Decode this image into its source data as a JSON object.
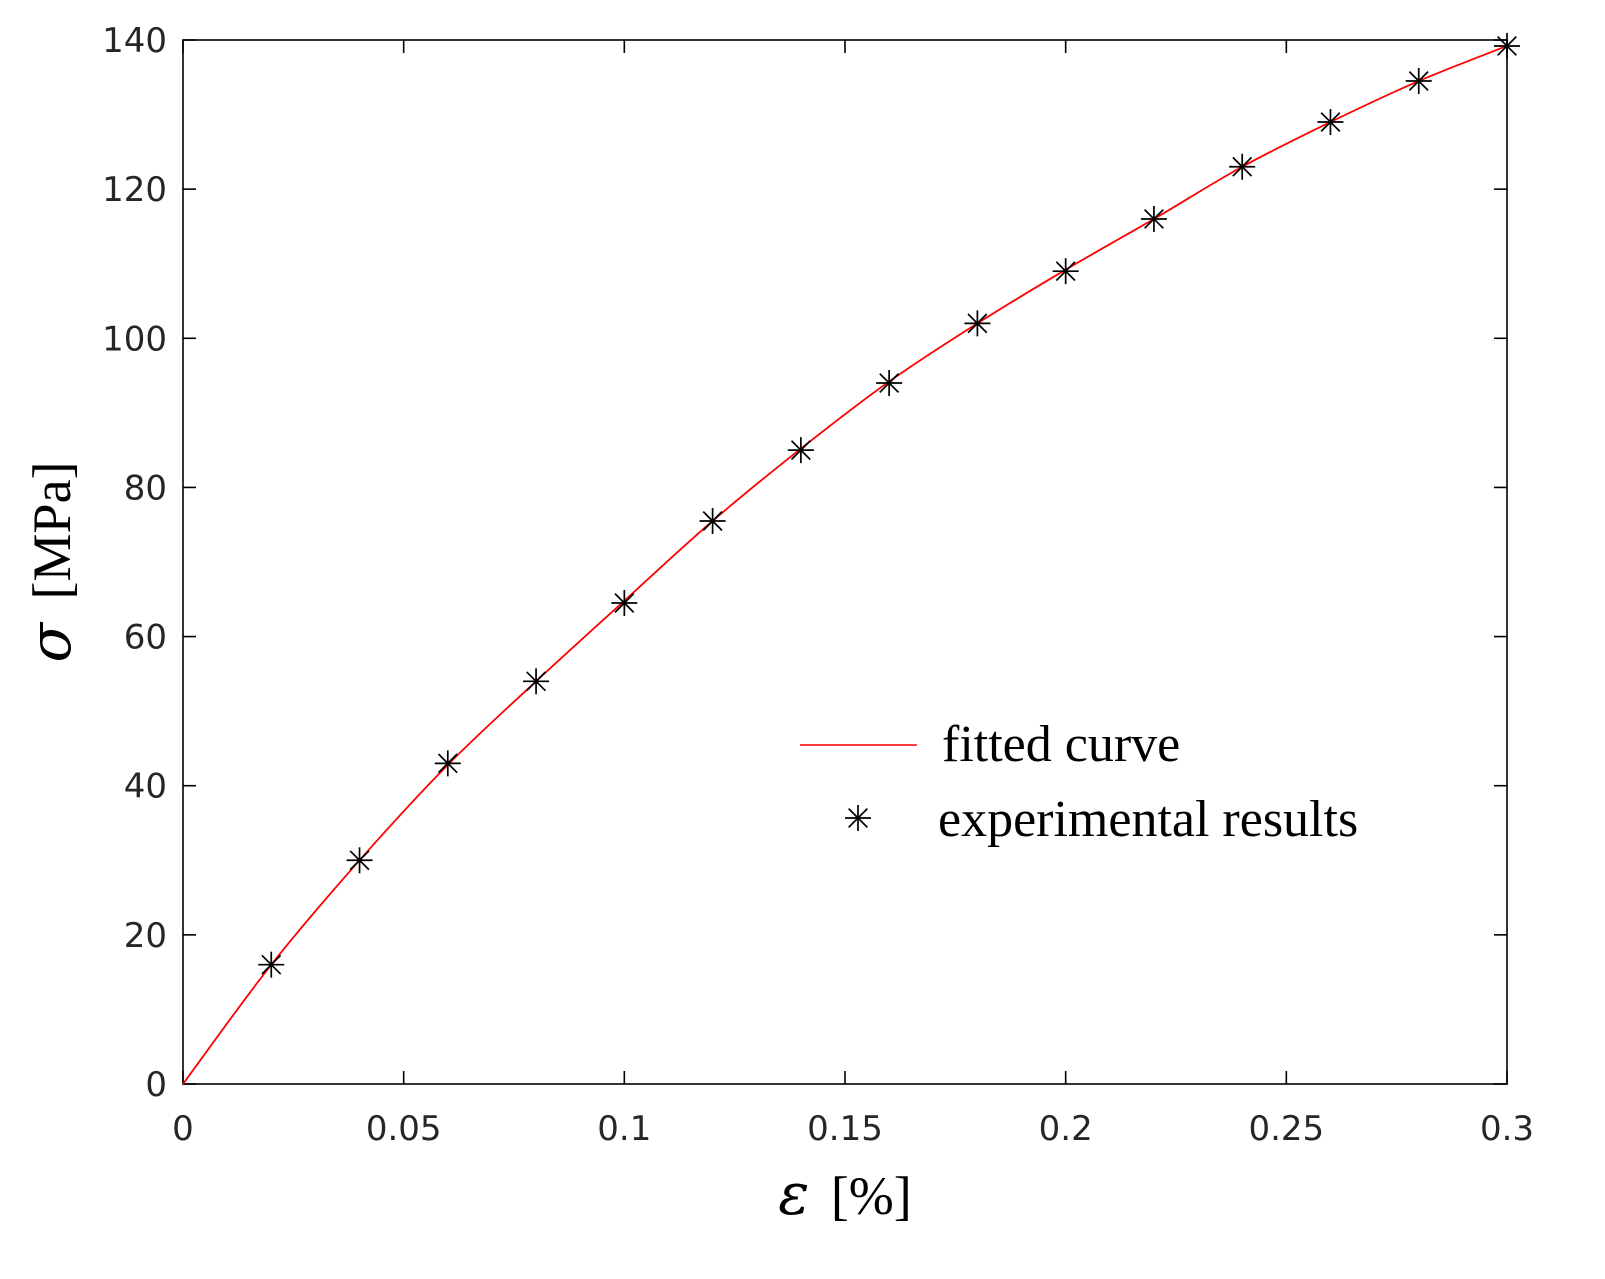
{
  "chart_data": {
    "type": "line",
    "title": "",
    "xlabel": {
      "symbol": "ε",
      "unit": "[%]"
    },
    "ylabel": {
      "symbol": "σ",
      "unit": "[MPa]"
    },
    "xlim": [
      0,
      0.3
    ],
    "ylim": [
      0,
      140
    ],
    "xticks": [
      0,
      0.05,
      0.1,
      0.15,
      0.2,
      0.25,
      0.3
    ],
    "xtick_labels": [
      "0",
      "0.05",
      "0.1",
      "0.15",
      "0.2",
      "0.25",
      "0.3"
    ],
    "yticks": [
      0,
      20,
      40,
      60,
      80,
      100,
      120,
      140
    ],
    "ytick_labels": [
      "0",
      "20",
      "40",
      "60",
      "80",
      "100",
      "120",
      "140"
    ],
    "grid": false,
    "legend_position": "center-right",
    "series": [
      {
        "name": "fitted curve",
        "style": "line",
        "color": "#ff0000",
        "x": [
          0,
          0.02,
          0.04,
          0.06,
          0.08,
          0.1,
          0.12,
          0.14,
          0.16,
          0.18,
          0.2,
          0.22,
          0.24,
          0.26,
          0.28,
          0.3
        ],
        "y": [
          0,
          16,
          30,
          42.8,
          54,
          64.8,
          75.5,
          85.2,
          94.2,
          102,
          109.2,
          116,
          123,
          129,
          134.5,
          139.2
        ]
      },
      {
        "name": "experimental results",
        "style": "marker-asterisk",
        "color": "#000000",
        "x": [
          0.02,
          0.04,
          0.06,
          0.08,
          0.1,
          0.12,
          0.14,
          0.16,
          0.18,
          0.2,
          0.22,
          0.24,
          0.26,
          0.28,
          0.3
        ],
        "y": [
          16,
          30,
          43,
          54,
          64.5,
          75.5,
          85,
          94,
          102,
          109,
          116,
          123,
          129,
          134.5,
          139.2
        ]
      }
    ]
  }
}
